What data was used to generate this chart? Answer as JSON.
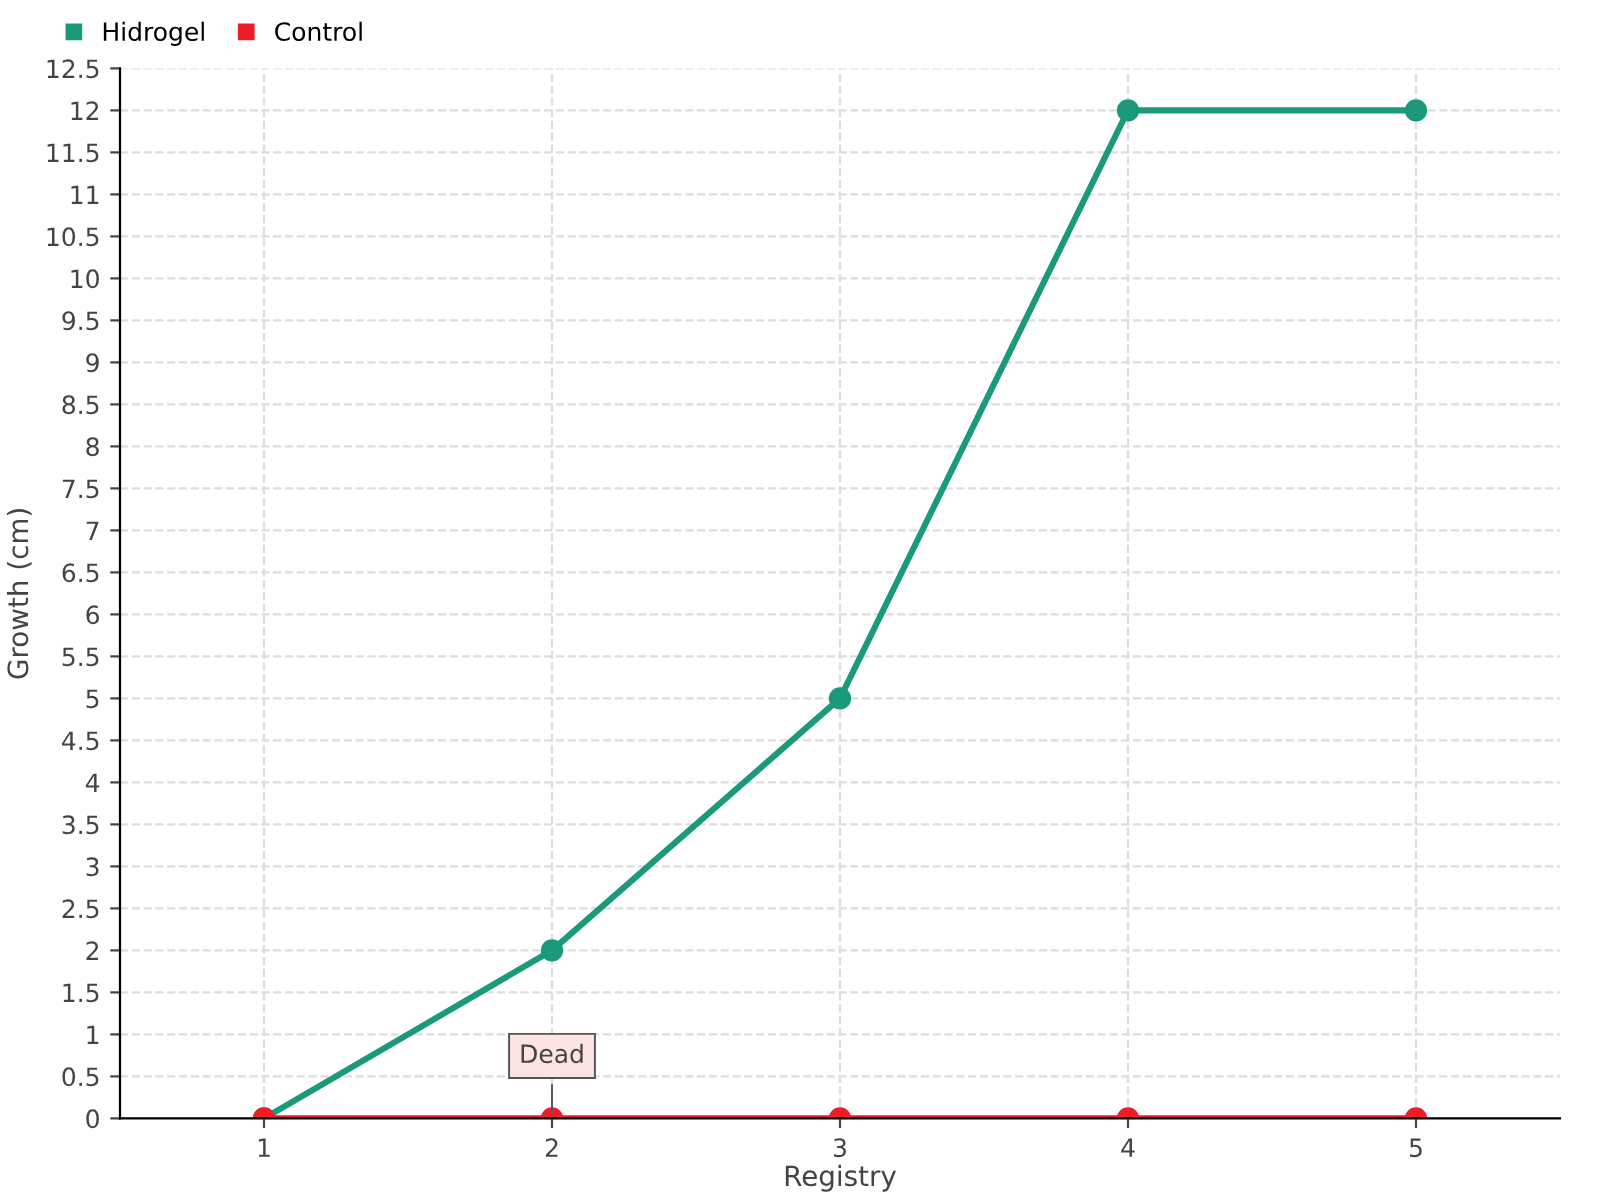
{
  "chart_data": {
    "type": "line",
    "xlabel": "Registry",
    "ylabel": "Growth (cm)",
    "categories": [
      "1",
      "2",
      "3",
      "4",
      "5"
    ],
    "series": [
      {
        "name": "Hidrogel",
        "color": "#1a9a7a",
        "values": [
          0,
          2,
          5,
          12,
          12
        ]
      },
      {
        "name": "Control",
        "color": "#ee1c25",
        "values": [
          0,
          0,
          0,
          0,
          0
        ]
      }
    ],
    "ylim": [
      0,
      12.5
    ],
    "yticks": [
      0,
      0.5,
      1,
      1.5,
      2,
      2.5,
      3,
      3.5,
      4,
      4.5,
      5,
      5.5,
      6,
      6.5,
      7,
      7.5,
      8,
      8.5,
      9,
      9.5,
      10,
      10.5,
      11,
      11.5,
      12,
      12.5
    ],
    "grid": true,
    "legend": "top left",
    "marker": "circle",
    "line_style": "solid",
    "annotations": [
      {
        "text": "Dead",
        "x": "2",
        "y": 0
      }
    ]
  }
}
